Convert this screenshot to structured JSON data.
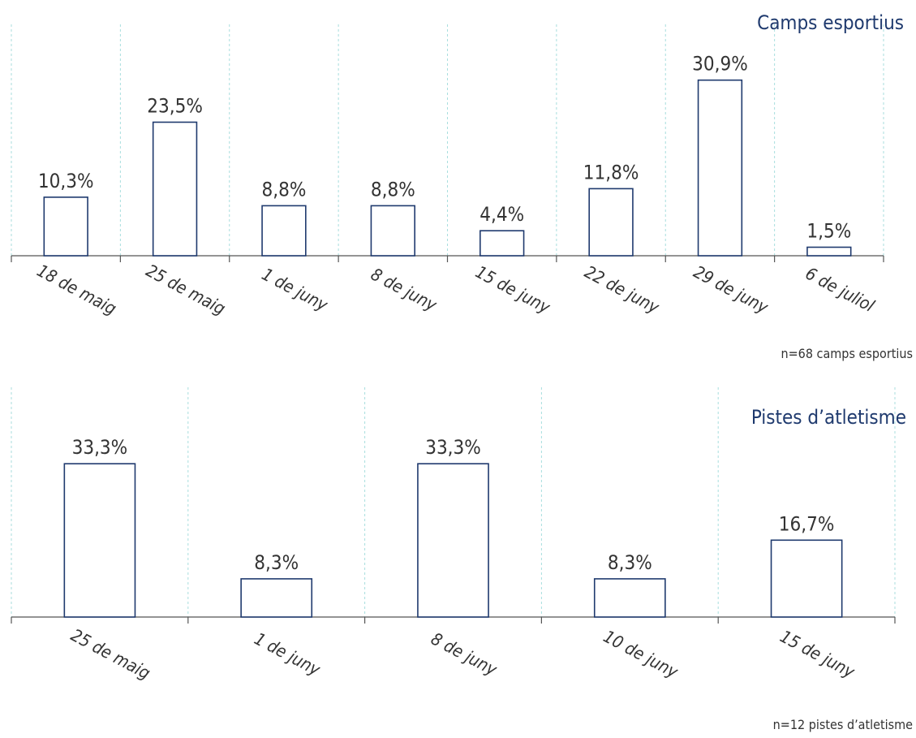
{
  "colors": {
    "bar_stroke": "#1f3a6e",
    "title": "#1f3a6e",
    "grid": "#a8dede",
    "axis": "#555555"
  },
  "chart_data": [
    {
      "type": "bar",
      "title": "Camps esportius",
      "categories": [
        "18 de maig",
        "25 de maig",
        "1 de juny",
        "8 de juny",
        "15 de juny",
        "22 de juny",
        "29 de juny",
        "6 de juliol"
      ],
      "values": [
        10.3,
        23.5,
        8.8,
        8.8,
        4.4,
        11.8,
        30.9,
        1.5
      ],
      "value_labels": [
        "10,3%",
        "23,5%",
        "8,8%",
        "8,8%",
        "4,4%",
        "11,8%",
        "30,9%",
        "1,5%"
      ],
      "note": "n=68 camps esportius",
      "grid": true
    },
    {
      "type": "bar",
      "title": "Pistes d’atletisme",
      "categories": [
        "25 de maig",
        "1 de juny",
        "8 de juny",
        "10 de juny",
        "15 de juny"
      ],
      "values": [
        33.3,
        8.3,
        33.3,
        8.3,
        16.7
      ],
      "value_labels": [
        "33,3%",
        "8,3%",
        "33,3%",
        "8,3%",
        "16,7%"
      ],
      "note": "n=12 pistes d’atletisme",
      "grid": true
    }
  ]
}
